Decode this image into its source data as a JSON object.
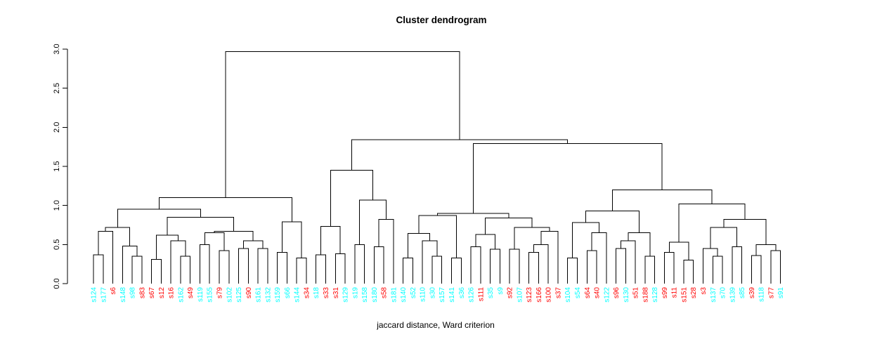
{
  "chart_data": {
    "type": "dendrogram",
    "title": "Cluster dendrogram",
    "xlabel": "jaccard distance, Ward criterion",
    "ylabel": "",
    "ylim": [
      0,
      3
    ],
    "yticks": [
      "0.0",
      "0.5",
      "1.0",
      "1.5",
      "2.0",
      "2.5",
      "3.0"
    ],
    "grid": "off",
    "legend": "none",
    "leaf_colors": {
      "cyan": "#00FFFF",
      "red": "#FF0000"
    },
    "line_color": "#000000",
    "root_height": 2.97,
    "leaves": [
      [
        "s124",
        "cyan"
      ],
      [
        "s177",
        "cyan"
      ],
      [
        "s6",
        "red"
      ],
      [
        "s148",
        "cyan"
      ],
      [
        "s98",
        "cyan"
      ],
      [
        "s83",
        "red"
      ],
      [
        "s67",
        "red"
      ],
      [
        "s12",
        "red"
      ],
      [
        "s16",
        "red"
      ],
      [
        "s162",
        "cyan"
      ],
      [
        "s49",
        "red"
      ],
      [
        "s119",
        "cyan"
      ],
      [
        "s155",
        "cyan"
      ],
      [
        "s79",
        "red"
      ],
      [
        "s102",
        "cyan"
      ],
      [
        "s125",
        "cyan"
      ],
      [
        "s90",
        "red"
      ],
      [
        "s161",
        "cyan"
      ],
      [
        "s132",
        "cyan"
      ],
      [
        "s159",
        "cyan"
      ],
      [
        "s66",
        "cyan"
      ],
      [
        "s144",
        "cyan"
      ],
      [
        "s34",
        "red"
      ],
      [
        "s18",
        "cyan"
      ],
      [
        "s33",
        "red"
      ],
      [
        "s31",
        "red"
      ],
      [
        "s129",
        "cyan"
      ],
      [
        "s19",
        "cyan"
      ],
      [
        "s158",
        "cyan"
      ],
      [
        "s180",
        "cyan"
      ],
      [
        "s58",
        "red"
      ],
      [
        "s181",
        "cyan"
      ],
      [
        "s140",
        "cyan"
      ],
      [
        "s52",
        "cyan"
      ],
      [
        "s110",
        "cyan"
      ],
      [
        "s30",
        "cyan"
      ],
      [
        "s157",
        "cyan"
      ],
      [
        "s141",
        "cyan"
      ],
      [
        "s36",
        "cyan"
      ],
      [
        "s126",
        "cyan"
      ],
      [
        "s111",
        "red"
      ],
      [
        "s35",
        "cyan"
      ],
      [
        "s9",
        "cyan"
      ],
      [
        "s92",
        "red"
      ],
      [
        "s107",
        "cyan"
      ],
      [
        "s123",
        "red"
      ],
      [
        "s166",
        "red"
      ],
      [
        "s100",
        "red"
      ],
      [
        "s37",
        "red"
      ],
      [
        "s104",
        "cyan"
      ],
      [
        "s54",
        "cyan"
      ],
      [
        "s64",
        "red"
      ],
      [
        "s40",
        "red"
      ],
      [
        "s122",
        "cyan"
      ],
      [
        "s96",
        "red"
      ],
      [
        "s130",
        "cyan"
      ],
      [
        "s51",
        "red"
      ],
      [
        "s188",
        "red"
      ],
      [
        "s128",
        "cyan"
      ],
      [
        "s99",
        "red"
      ],
      [
        "s11",
        "red"
      ],
      [
        "s151",
        "red"
      ],
      [
        "s28",
        "red"
      ],
      [
        "s3",
        "red"
      ],
      [
        "s137",
        "cyan"
      ],
      [
        "s70",
        "cyan"
      ],
      [
        "s139",
        "cyan"
      ],
      [
        "s85",
        "cyan"
      ],
      [
        "s39",
        "red"
      ],
      [
        "s118",
        "cyan"
      ],
      [
        "s77",
        "red"
      ],
      [
        "s91",
        "cyan"
      ]
    ],
    "tree": [
      2.97,
      [
        1.1,
        [
          0.95,
          [
            0.72,
            [
              0.67,
              [
                0.37,
                0,
                1
              ],
              2
            ],
            [
              0.48,
              3,
              [
                0.35,
                4,
                5
              ]
            ]
          ],
          [
            0.85,
            [
              0.62,
              [
                0.31,
                6,
                7
              ],
              [
                0.55,
                8,
                [
                  0.35,
                  9,
                  10
                ]
              ]
            ],
            [
              0.67,
              [
                0.65,
                [
                  0.5,
                  11,
                  12
                ],
                [
                  0.42,
                  13,
                  14
                ]
              ],
              [
                0.55,
                [
                  0.45,
                  15,
                  16
                ],
                [
                  0.45,
                  17,
                  18
                ]
              ]
            ]
          ]
        ],
        [
          0.79,
          [
            0.4,
            19,
            20
          ],
          [
            0.33,
            21,
            22
          ]
        ]
      ],
      [
        1.84,
        [
          1.45,
          [
            0.73,
            [
              0.37,
              23,
              24
            ],
            [
              0.38,
              25,
              26
            ]
          ],
          [
            1.07,
            [
              0.5,
              27,
              28
            ],
            [
              0.82,
              [
                0.47,
                29,
                30
              ],
              31
            ]
          ]
        ],
        [
          1.79,
          [
            0.9,
            [
              0.87,
              [
                0.64,
                [
                  0.33,
                  32,
                  33
                ],
                [
                  0.55,
                  34,
                  [
                    0.35,
                    35,
                    36
                  ]
                ]
              ],
              [
                0.33,
                37,
                38
              ]
            ],
            [
              0.84,
              [
                0.63,
                [
                  0.47,
                  39,
                  40
                ],
                [
                  0.44,
                  41,
                  42
                ]
              ],
              [
                0.72,
                [
                  0.44,
                  43,
                  44
                ],
                [
                  0.67,
                  [
                    0.5,
                    [
                      0.4,
                      45,
                      46
                    ],
                    47
                  ],
                  48
                ]
              ]
            ]
          ],
          [
            1.2,
            [
              0.93,
              [
                0.78,
                [
                  0.33,
                  49,
                  50
                ],
                [
                  0.65,
                  [
                    0.42,
                    51,
                    52
                  ],
                  53
                ]
              ],
              [
                0.65,
                [
                  0.55,
                  [
                    0.45,
                    54,
                    55
                  ],
                  56
                ],
                [
                  0.35,
                  57,
                  58
                ]
              ]
            ],
            [
              1.02,
              [
                0.53,
                [
                  0.4,
                  59,
                  60
                ],
                [
                  0.3,
                  61,
                  62
                ]
              ],
              [
                0.82,
                [
                  0.72,
                  [
                    0.45,
                    63,
                    [
                      0.35,
                      64,
                      65
                    ]
                  ],
                  [
                    0.47,
                    66,
                    67
                  ]
                ],
                [
                  0.5,
                  [
                    0.36,
                    68,
                    69
                  ],
                  [
                    0.42,
                    70,
                    71
                  ]
                ]
              ]
            ]
          ]
        ]
      ]
    ]
  }
}
